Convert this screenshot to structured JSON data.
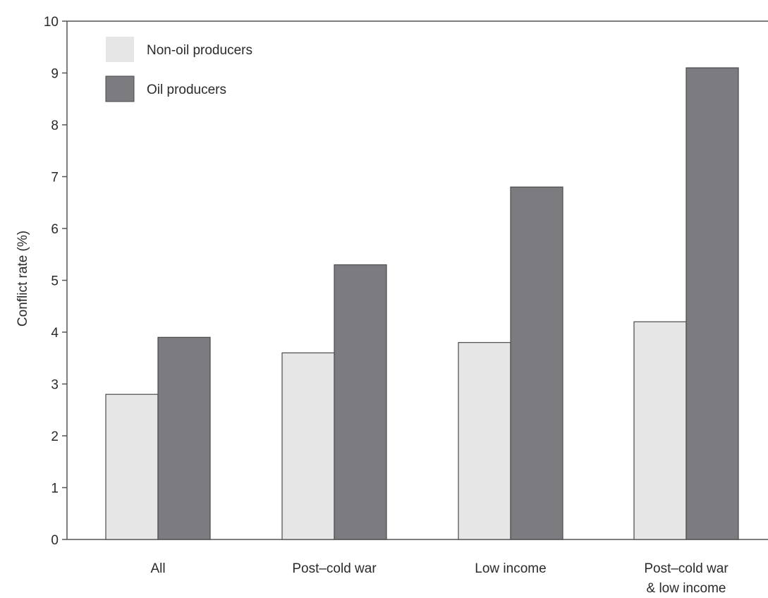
{
  "chart_data": {
    "type": "bar",
    "categories": [
      [
        "All"
      ],
      [
        "Post–cold war"
      ],
      [
        "Low income"
      ],
      [
        "Post–cold war",
        "& low income"
      ]
    ],
    "series": [
      {
        "name": "Non-oil producers",
        "values": [
          2.8,
          3.6,
          3.8,
          4.2
        ],
        "color": "#e6e6e7"
      },
      {
        "name": "Oil producers",
        "values": [
          3.9,
          5.3,
          6.8,
          9.1
        ],
        "color": "#7b7b80"
      }
    ],
    "title": "",
    "xlabel": "",
    "ylabel": "Conflict rate (%)",
    "ylim": [
      0,
      10
    ],
    "yticks": [
      0,
      1,
      2,
      3,
      4,
      5,
      6,
      7,
      8,
      9,
      10
    ],
    "grid": false,
    "legend_position": "top-left",
    "bar_outline_color": "#4a4a4a",
    "axis_color": "#555555"
  }
}
